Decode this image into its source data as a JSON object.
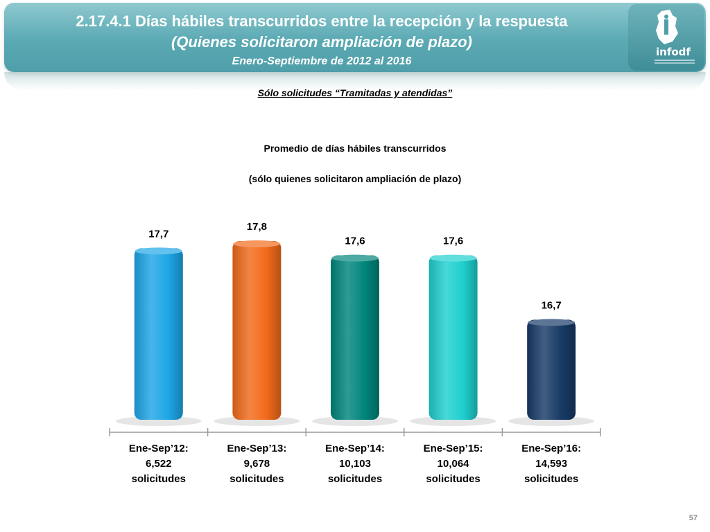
{
  "header": {
    "title": "2.17.4.1 Días hábiles transcurridos entre la recepción y la respuesta",
    "subtitle": "(Quienes solicitaron ampliación de plazo)",
    "period": "Enero-Septiembre de 2012 al 2016",
    "logo_text": "infodf"
  },
  "note": "Sólo solicitudes “Tramitadas y atendidas”",
  "page_number": "57",
  "chart_data": {
    "type": "bar",
    "title": "Promedio de días hábiles transcurridos",
    "subtitle": "(sólo quienes solicitaron ampliación de plazo)",
    "categories": [
      [
        "Ene-Sep’12:",
        "6,522",
        "solicitudes"
      ],
      [
        "Ene-Sep’13:",
        "9,678",
        "solicitudes"
      ],
      [
        "Ene-Sep’14:",
        "10,103",
        "solicitudes"
      ],
      [
        "Ene-Sep’15:",
        "10,064",
        "solicitudes"
      ],
      [
        "Ene-Sep’16:",
        "14,593",
        "solicitudes"
      ]
    ],
    "values": [
      17.7,
      17.8,
      17.6,
      17.6,
      16.7
    ],
    "value_labels": [
      "17,7",
      "17,8",
      "17,6",
      "17,6",
      "16,7"
    ],
    "colors": [
      "#1ea6e6",
      "#f26a1b",
      "#00857c",
      "#1fd0cf",
      "#173a66"
    ],
    "grid": false,
    "legend": "none"
  }
}
